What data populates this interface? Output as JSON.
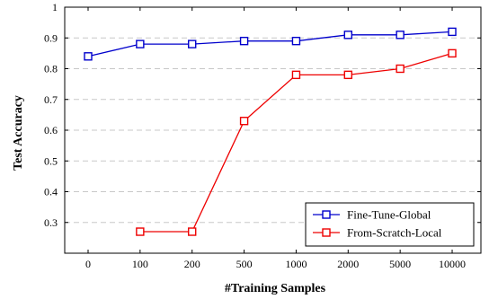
{
  "chart_data": {
    "type": "line",
    "title": "",
    "xlabel": "#Training Samples",
    "ylabel": "Test Accuracy",
    "categories": [
      "0",
      "100",
      "200",
      "500",
      "1000",
      "2000",
      "5000",
      "10000"
    ],
    "ylim": [
      0.2,
      1.0
    ],
    "yticks": [
      0.3,
      0.4,
      0.5,
      0.6,
      0.7,
      0.8,
      0.9,
      1.0
    ],
    "ytick_labels": [
      "0.3",
      "0.4",
      "0.5",
      "0.6",
      "0.7",
      "0.8",
      "0.9",
      "1"
    ],
    "grid": "horizontal-dashed",
    "legend_position": "bottom-right",
    "series": [
      {
        "name": "Fine-Tune-Global",
        "color": "#0000cc",
        "marker": "square",
        "values": [
          0.84,
          0.88,
          0.88,
          0.89,
          0.89,
          0.91,
          0.91,
          0.92
        ]
      },
      {
        "name": "From-Scratch-Local",
        "color": "#ee0000",
        "marker": "square",
        "values": [
          null,
          0.27,
          0.27,
          0.63,
          0.78,
          0.78,
          0.8,
          0.85
        ]
      }
    ]
  }
}
